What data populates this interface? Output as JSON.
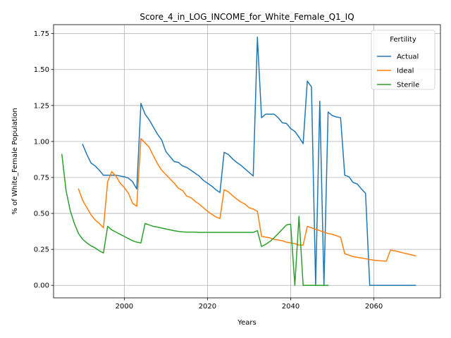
{
  "chart_data": {
    "type": "line",
    "title": "Score_4_in_LOG_INCOME_for_White_Female_Q1_IQ",
    "xlabel": "Years",
    "ylabel": "% of White_Female Population",
    "xlim": [
      1983,
      2076
    ],
    "ylim": [
      -0.087,
      1.812
    ],
    "xticks": [
      2000,
      2020,
      2040,
      2060
    ],
    "yticks": [
      0.0,
      0.25,
      0.5,
      0.75,
      1.0,
      1.25,
      1.5,
      1.75
    ],
    "grid": true,
    "legend": {
      "title": "Fertility",
      "position": "top-right",
      "entries": [
        "Actual",
        "Ideal",
        "Sterile"
      ]
    },
    "series": [
      {
        "name": "Actual",
        "color": "#1f77b4",
        "x": [
          1990,
          1991,
          1992,
          1993,
          1994,
          1995,
          1996,
          1997,
          1998,
          1999,
          2000,
          2001,
          2002,
          2003,
          2004,
          2005,
          2006,
          2007,
          2008,
          2009,
          2010,
          2011,
          2012,
          2013,
          2014,
          2015,
          2016,
          2017,
          2018,
          2019,
          2020,
          2021,
          2022,
          2023,
          2024,
          2025,
          2026,
          2027,
          2028,
          2029,
          2030,
          2031,
          2032,
          2033,
          2034,
          2035,
          2036,
          2037,
          2038,
          2039,
          2040,
          2041,
          2042,
          2043,
          2044,
          2045,
          2046,
          2047,
          2048,
          2049,
          2050,
          2051,
          2052,
          2053,
          2054,
          2055,
          2056,
          2057,
          2058,
          2059,
          2060,
          2061,
          2062,
          2063,
          2064,
          2065,
          2066,
          2067,
          2068,
          2069,
          2070
        ],
        "y": [
          0.98,
          0.91,
          0.85,
          0.83,
          0.8,
          0.765,
          0.765,
          0.765,
          0.765,
          0.76,
          0.755,
          0.745,
          0.72,
          0.67,
          1.265,
          1.19,
          1.15,
          1.1,
          1.05,
          1.01,
          0.93,
          0.895,
          0.86,
          0.855,
          0.83,
          0.82,
          0.8,
          0.78,
          0.76,
          0.73,
          0.71,
          0.69,
          0.665,
          0.645,
          0.925,
          0.91,
          0.88,
          0.855,
          0.835,
          0.81,
          0.785,
          0.76,
          1.725,
          1.165,
          1.19,
          1.19,
          1.19,
          1.165,
          1.13,
          1.125,
          1.09,
          1.07,
          1.03,
          0.985,
          1.42,
          1.38,
          0.0,
          1.28,
          0.0,
          1.205,
          1.18,
          1.17,
          1.165,
          0.765,
          0.755,
          0.715,
          0.705,
          0.67,
          0.64,
          0.0,
          0.0,
          0.0,
          0.0,
          0.0,
          0.0,
          0.0,
          0.0,
          0.0,
          0.0,
          0.0,
          0.0
        ]
      },
      {
        "name": "Ideal",
        "color": "#ff7f0e",
        "x": [
          1989,
          1990,
          1991,
          1992,
          1993,
          1994,
          1995,
          1996,
          1997,
          1998,
          1999,
          2000,
          2001,
          2002,
          2003,
          2004,
          2005,
          2006,
          2007,
          2008,
          2009,
          2010,
          2011,
          2012,
          2013,
          2014,
          2015,
          2016,
          2017,
          2018,
          2019,
          2020,
          2021,
          2022,
          2023,
          2024,
          2025,
          2026,
          2027,
          2028,
          2029,
          2030,
          2031,
          2032,
          2033,
          2034,
          2035,
          2036,
          2037,
          2038,
          2039,
          2040,
          2041,
          2042,
          2043,
          2044,
          2045,
          2046,
          2047,
          2048,
          2049,
          2050,
          2051,
          2052,
          2053,
          2054,
          2055,
          2056,
          2057,
          2058,
          2059,
          2060,
          2061,
          2062,
          2063,
          2064,
          2065,
          2066,
          2067,
          2068,
          2069,
          2070
        ],
        "y": [
          0.67,
          0.59,
          0.54,
          0.49,
          0.455,
          0.43,
          0.4,
          0.72,
          0.79,
          0.76,
          0.71,
          0.68,
          0.64,
          0.57,
          0.55,
          1.02,
          0.99,
          0.96,
          0.9,
          0.845,
          0.8,
          0.77,
          0.74,
          0.71,
          0.675,
          0.66,
          0.62,
          0.61,
          0.585,
          0.565,
          0.54,
          0.515,
          0.495,
          0.475,
          0.465,
          0.665,
          0.65,
          0.625,
          0.6,
          0.58,
          0.565,
          0.54,
          0.53,
          0.515,
          0.34,
          0.335,
          0.33,
          0.32,
          0.315,
          0.31,
          0.3,
          0.295,
          0.29,
          0.28,
          0.28,
          0.41,
          0.4,
          0.39,
          0.38,
          0.37,
          0.36,
          0.355,
          0.345,
          0.335,
          0.22,
          0.21,
          0.2,
          0.195,
          0.19,
          0.185,
          0.18,
          0.175,
          0.172,
          0.17,
          0.168,
          0.245,
          0.24,
          0.233,
          0.226,
          0.219,
          0.212,
          0.205
        ]
      },
      {
        "name": "Sterile",
        "color": "#2ca02c",
        "x": [
          1985,
          1986,
          1987,
          1988,
          1989,
          1990,
          1991,
          1992,
          1993,
          1994,
          1995,
          1996,
          1997,
          1998,
          1999,
          2000,
          2001,
          2002,
          2003,
          2004,
          2005,
          2006,
          2007,
          2008,
          2009,
          2010,
          2011,
          2012,
          2013,
          2014,
          2015,
          2016,
          2017,
          2018,
          2019,
          2020,
          2021,
          2022,
          2023,
          2024,
          2025,
          2026,
          2027,
          2028,
          2029,
          2030,
          2031,
          2032,
          2033,
          2034,
          2035,
          2036,
          2037,
          2038,
          2039,
          2040,
          2041,
          2042,
          2043,
          2044,
          2045,
          2046,
          2047,
          2048,
          2049
        ],
        "y": [
          0.91,
          0.66,
          0.52,
          0.43,
          0.36,
          0.32,
          0.295,
          0.275,
          0.26,
          0.24,
          0.225,
          0.41,
          0.385,
          0.37,
          0.355,
          0.34,
          0.325,
          0.31,
          0.3,
          0.295,
          0.43,
          0.42,
          0.41,
          0.405,
          0.398,
          0.392,
          0.386,
          0.38,
          0.375,
          0.372,
          0.37,
          0.37,
          0.37,
          0.368,
          0.368,
          0.368,
          0.368,
          0.368,
          0.368,
          0.368,
          0.368,
          0.368,
          0.368,
          0.368,
          0.368,
          0.368,
          0.368,
          0.38,
          0.27,
          0.285,
          0.305,
          0.33,
          0.36,
          0.39,
          0.42,
          0.425,
          0.0,
          0.48,
          0.0,
          0.0,
          0.0,
          0.0,
          0.0,
          0.0,
          0.0
        ]
      }
    ]
  }
}
